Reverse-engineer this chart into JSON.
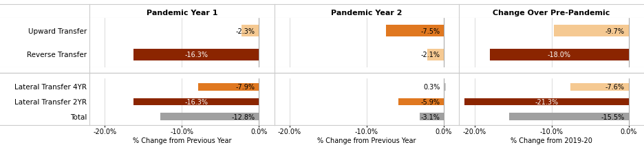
{
  "col_titles": [
    "Pandemic Year 1",
    "Pandemic Year 2",
    "Change Over Pre-Pandemic"
  ],
  "col_xlabels": [
    "% Change from Previous Year",
    "% Change from Previous Year",
    "% Change from 2019-20"
  ],
  "section1": {
    "rows": [
      "Upward Transfer",
      "Reverse Transfer"
    ],
    "col1_values": [
      -2.3,
      -16.3
    ],
    "col2_values": [
      -7.5,
      -2.1
    ],
    "col3_values": [
      -9.7,
      -18.0
    ],
    "col1_colors": [
      "#F5C992",
      "#8B2500"
    ],
    "col2_colors": [
      "#E07820",
      "#F5C992"
    ],
    "col3_colors": [
      "#F5C992",
      "#8B2500"
    ]
  },
  "section2": {
    "rows": [
      "Lateral Transfer 4YR",
      "Lateral Transfer 2YR",
      "Total"
    ],
    "col1_values": [
      -7.9,
      -16.3,
      -12.8
    ],
    "col2_values": [
      0.3,
      -5.9,
      -3.1
    ],
    "col3_values": [
      -7.6,
      -21.3,
      -15.5
    ],
    "col1_colors": [
      "#E07820",
      "#8B2500",
      "#A0A0A0"
    ],
    "col2_colors": [
      "#C8C8C8",
      "#E07820",
      "#A0A0A0"
    ],
    "col3_colors": [
      "#F5C992",
      "#8B2500",
      "#A0A0A0"
    ]
  },
  "xlim": [
    -22,
    2.0
  ],
  "xticks": [
    -20.0,
    -10.0,
    0.0
  ],
  "bar_label_fontsize": 7,
  "title_fontsize": 8,
  "row_label_fontsize": 7.5,
  "xlabel_fontsize": 7,
  "bg_color": "#FFFFFF",
  "grid_color": "#CCCCCC",
  "white_label_threshold": -14.0
}
